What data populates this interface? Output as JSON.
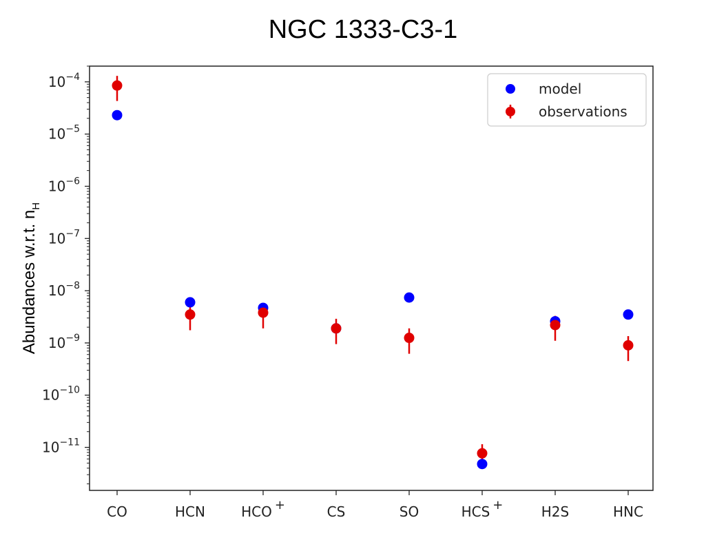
{
  "chart_data": {
    "type": "scatter",
    "title": "NGC 1333-C3-1",
    "ylabel": "Abundances w.r.t. n",
    "ylabel_sub": "H",
    "yscale": "log",
    "ylim": [
      1.5e-12,
      0.0002
    ],
    "yticks": [
      {
        "value": 0.0001,
        "base": "10",
        "exp": "-4"
      },
      {
        "value": 1e-05,
        "base": "10",
        "exp": "-5"
      },
      {
        "value": 1e-06,
        "base": "10",
        "exp": "-6"
      },
      {
        "value": 1e-07,
        "base": "10",
        "exp": "-7"
      },
      {
        "value": 1e-08,
        "base": "10",
        "exp": "-8"
      },
      {
        "value": 1e-09,
        "base": "10",
        "exp": "-9"
      },
      {
        "value": 1e-10,
        "base": "10",
        "exp": "-10"
      },
      {
        "value": 1e-11,
        "base": "10",
        "exp": "-11"
      }
    ],
    "categories": [
      {
        "base": "CO",
        "sup": ""
      },
      {
        "base": "HCN",
        "sup": ""
      },
      {
        "base": "HCO",
        "sup": "+"
      },
      {
        "base": "CS",
        "sup": ""
      },
      {
        "base": "SO",
        "sup": ""
      },
      {
        "base": "HCS",
        "sup": "+"
      },
      {
        "base": "H2S",
        "sup": ""
      },
      {
        "base": "HNC",
        "sup": ""
      }
    ],
    "series": [
      {
        "name": "model",
        "color": "#0000ff",
        "values": [
          2.3e-05,
          6e-09,
          4.7e-09,
          1.9e-09,
          7.4e-09,
          4.8e-12,
          2.6e-09,
          3.5e-09
        ]
      },
      {
        "name": "observations",
        "color": "#e00000",
        "values": [
          8.5e-05,
          3.5e-09,
          3.8e-09,
          1.9e-09,
          1.25e-09,
          7.7e-12,
          2.2e-09,
          9e-10
        ],
        "err_low": [
          4.3e-05,
          1.75e-09,
          1.9e-09,
          9.5e-10,
          6.2e-10,
          3.9e-12,
          1.1e-09,
          4.5e-10
        ],
        "err_high": [
          0.00013,
          5.2e-09,
          5.7e-09,
          2.9e-09,
          1.9e-09,
          1.15e-11,
          3.3e-09,
          1.35e-09
        ]
      }
    ],
    "legend": {
      "placement": "top-right",
      "entries": [
        "model",
        "observations"
      ]
    },
    "grid": false
  }
}
